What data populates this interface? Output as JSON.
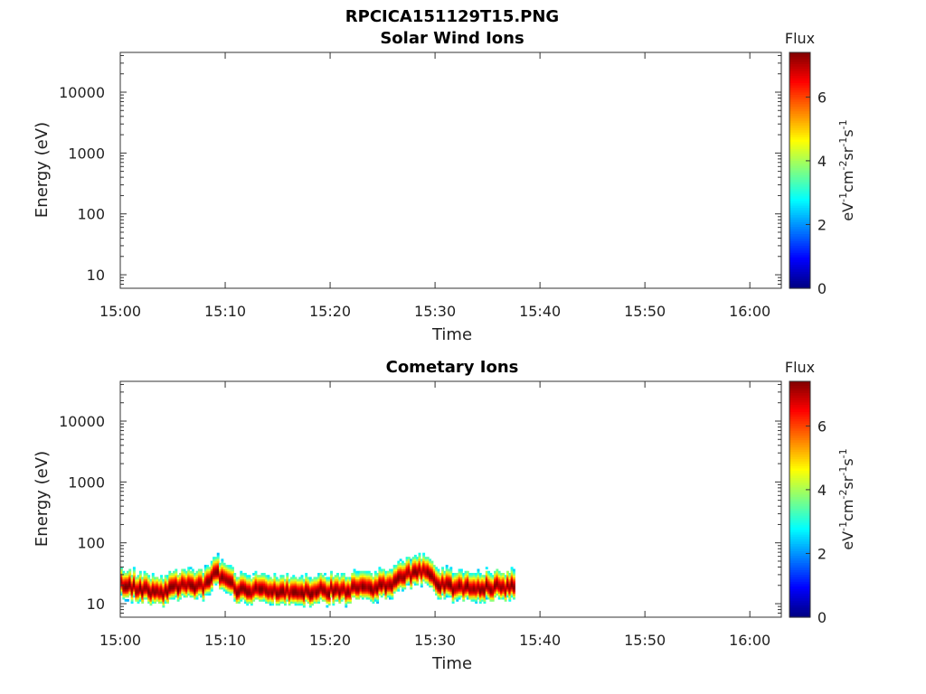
{
  "figure_title": "RPCICA151129T15.PNG",
  "chart_data": [
    {
      "type": "heatmap",
      "title": "Solar Wind Ions",
      "xlabel": "Time",
      "ylabel": "Energy (eV)",
      "y_scale": "log",
      "ylim": [
        6,
        45000
      ],
      "x_ticks": [
        "15:00",
        "15:10",
        "15:20",
        "15:30",
        "15:40",
        "15:50",
        "16:00"
      ],
      "y_ticks": [
        "10",
        "100",
        "1000",
        "10000"
      ],
      "xlim": [
        "15:00",
        "16:03"
      ],
      "colorbar": {
        "title": "Flux",
        "unit": "eV-1cm-2sr-1s-1",
        "range": [
          0,
          7.4
        ],
        "ticks": [
          "0",
          "2",
          "4",
          "6"
        ]
      },
      "data": []
    },
    {
      "type": "heatmap",
      "title": "Cometary Ions",
      "xlabel": "Time",
      "ylabel": "Energy (eV)",
      "y_scale": "log",
      "ylim": [
        6,
        45000
      ],
      "x_ticks": [
        "15:00",
        "15:10",
        "15:20",
        "15:30",
        "15:40",
        "15:50",
        "16:00"
      ],
      "y_ticks": [
        "10",
        "100",
        "1000",
        "10000"
      ],
      "xlim": [
        "15:00",
        "16:03"
      ],
      "colorbar": {
        "title": "Flux",
        "unit": "eV-1cm-2sr-1s-1",
        "range": [
          0,
          7.4
        ],
        "ticks": [
          "0",
          "2",
          "4",
          "6"
        ]
      },
      "data_time_range": [
        "15:00",
        "15:37.5"
      ],
      "peak_energy_eV": [
        [
          "15:00",
          20
        ],
        [
          "15:02",
          17
        ],
        [
          "15:04",
          14
        ],
        [
          "15:05",
          20
        ],
        [
          "15:06",
          19
        ],
        [
          "15:08",
          20
        ],
        [
          "15:09",
          30
        ],
        [
          "15:10",
          28
        ],
        [
          "15:11",
          17
        ],
        [
          "15:13",
          17
        ],
        [
          "15:16",
          16
        ],
        [
          "15:19",
          16
        ],
        [
          "15:22",
          17
        ],
        [
          "15:25",
          19
        ],
        [
          "15:27",
          27
        ],
        [
          "15:28",
          33
        ],
        [
          "15:29",
          32
        ],
        [
          "15:30",
          22
        ],
        [
          "15:31",
          20
        ],
        [
          "15:32",
          18
        ],
        [
          "15:34",
          18
        ],
        [
          "15:36",
          19
        ],
        [
          "15:37.5",
          18
        ]
      ],
      "upper_edge_eV": 80,
      "lower_edge_eV": 6
    }
  ]
}
